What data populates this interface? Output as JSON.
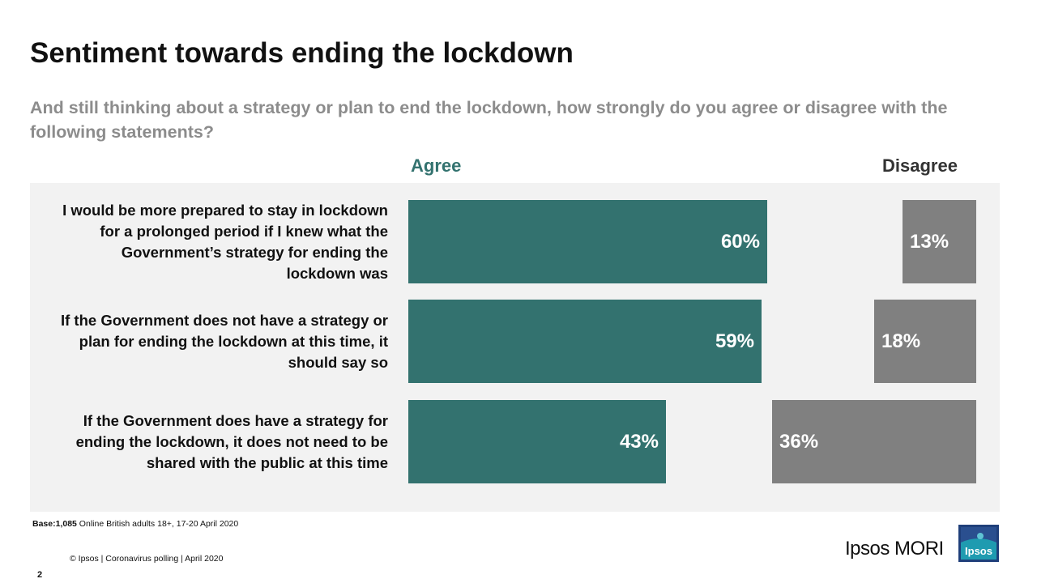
{
  "title": "Sentiment towards ending the lockdown",
  "subtitle": "And still thinking about a strategy or plan to end the lockdown, how strongly do you agree or disagree with the following statements?",
  "chart_data": {
    "type": "bar",
    "orientation": "horizontal",
    "column_headers": [
      "Agree",
      "Disagree"
    ],
    "categories": [
      "I would be more prepared to stay in lockdown for a prolonged period if I knew what the Government’s strategy for ending the lockdown was",
      "If the Government does not have a strategy or plan for ending the lockdown at this time, it should say so",
      "If the Government does have a strategy for ending the lockdown, it does not need to be shared with the public at this time"
    ],
    "series": [
      {
        "name": "Agree",
        "values": [
          60,
          59,
          43
        ],
        "labels": [
          "60%",
          "59%",
          "43%"
        ],
        "color": "#33726f"
      },
      {
        "name": "Disagree",
        "values": [
          13,
          18,
          36
        ],
        "labels": [
          "13%",
          "18%",
          "36%"
        ],
        "color": "#808080"
      }
    ],
    "unit": "%"
  },
  "base": {
    "label": "Base:",
    "count": "1,085",
    "text": " Online British adults 18+,  17-20 April 2020"
  },
  "footer": "© Ipsos | Coronavirus polling  |  April 2020",
  "page_number": "2",
  "brand": {
    "name": "Ipsos MORI",
    "logo_text": "Ipsos",
    "logo_color": "#1f9bb0"
  }
}
